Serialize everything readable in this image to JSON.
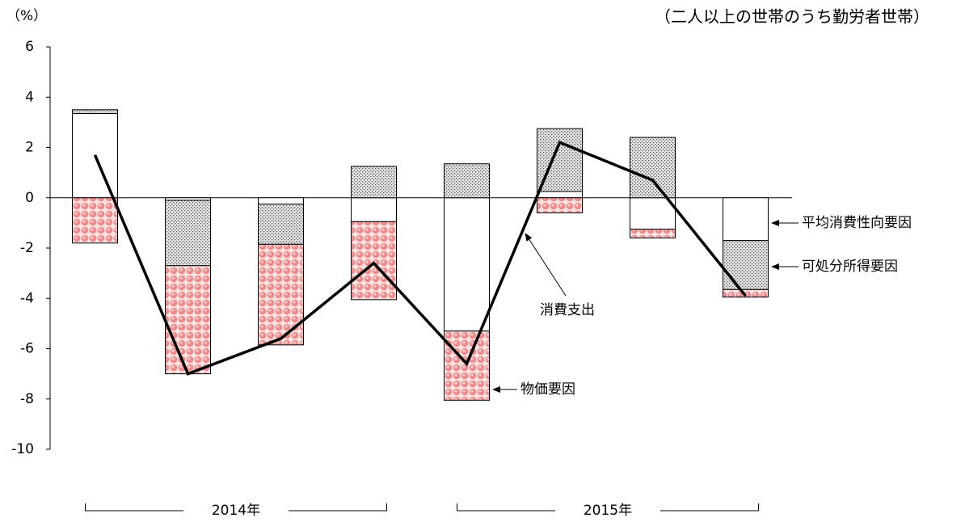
{
  "chart_data": {
    "type": "stacked_bar_line",
    "title": "（二人以上の世帯のうち勤労者世帯）",
    "y_unit": "（%）",
    "categories": [
      null,
      null,
      null,
      null,
      null,
      null,
      null,
      null
    ],
    "year_labels": [
      "2014年",
      "2015年"
    ],
    "ylim": [
      -10,
      6
    ],
    "yticks": [
      -10,
      -8,
      -6,
      -4,
      -2,
      0,
      2,
      4,
      6
    ],
    "series": [
      {
        "name": "平均消費性向要因",
        "type": "bar",
        "color": "#ffffff",
        "pattern": null,
        "values": [
          3.35,
          -0.1,
          -0.25,
          -0.95,
          -5.3,
          0.25,
          -1.25,
          -1.7
        ]
      },
      {
        "name": "可処分所得要因",
        "type": "bar",
        "color": "#999999",
        "pattern": "dots",
        "values": [
          0.15,
          -2.6,
          -1.6,
          1.25,
          1.35,
          2.5,
          2.4,
          -1.95
        ]
      },
      {
        "name": "物価要因",
        "type": "bar",
        "color": "#f4a0a0",
        "pattern": "circles",
        "values": [
          -1.8,
          -4.3,
          -4.0,
          -3.1,
          -2.75,
          -0.6,
          -0.35,
          -0.3
        ]
      },
      {
        "name": "消費支出",
        "type": "line",
        "color": "#000000",
        "values": [
          1.7,
          -7.0,
          -5.6,
          -2.6,
          -6.6,
          2.2,
          0.7,
          -3.9
        ]
      }
    ]
  }
}
